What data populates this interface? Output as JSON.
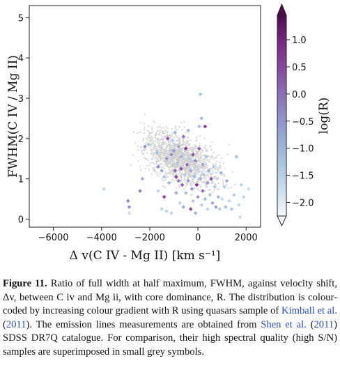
{
  "chart_data": {
    "type": "scatter",
    "xlabel": "Δ v(C IV - Mg II) [km s⁻¹]",
    "ylabel": "FWHM(C IV / Mg II)",
    "colorbar_label": "log(R)",
    "xlim": [
      -7000,
      2600
    ],
    "ylim": [
      -0.2,
      5.3
    ],
    "xticks": [
      "−6000",
      "−4000",
      "−2000",
      "0",
      "2000"
    ],
    "yticks": [
      "0",
      "1",
      "2",
      "3",
      "4",
      "5"
    ],
    "clim": [
      -2.25,
      1.45
    ],
    "cticks": [
      "1.0",
      "0.5",
      "0.0",
      "−0.5",
      "−1.0",
      "−1.5",
      "−2.0"
    ],
    "colormap": [
      "#f6f9fb",
      "#c2d6e8",
      "#9bb8da",
      "#8f8fc8",
      "#8a5dad",
      "#7f2f8b",
      "#4c0a4f"
    ],
    "grey_color": "#c6c6c6",
    "series": [
      {
        "note": "colored diamonds",
        "points": [
          [
            -3900,
            0.75,
            -1.6
          ],
          [
            -2900,
            0.45,
            -0.1
          ],
          [
            -2850,
            0.3,
            -0.3
          ],
          [
            -2850,
            0.15,
            -1.7
          ],
          [
            -2400,
            0.7,
            -0.1
          ],
          [
            -2300,
            1.0,
            -0.8
          ],
          [
            -2200,
            1.8,
            -0.2
          ],
          [
            -2050,
            1.85,
            -1.2
          ],
          [
            -1700,
            1.65,
            -1.0
          ],
          [
            -1650,
            1.3,
            -0.1
          ],
          [
            -1500,
            1.2,
            -0.6
          ],
          [
            -1400,
            1.05,
            -1.1
          ],
          [
            -1400,
            0.55,
            0.9
          ],
          [
            -1300,
            1.5,
            -0.4
          ],
          [
            -1300,
            0.2,
            -1.4
          ],
          [
            -1250,
            2.0,
            0.5
          ],
          [
            -1200,
            0.9,
            -0.9
          ],
          [
            -1100,
            1.6,
            -0.2
          ],
          [
            -1100,
            0.15,
            -1.6
          ],
          [
            -1050,
            1.95,
            -1.3
          ],
          [
            -1000,
            1.7,
            -0.4
          ],
          [
            -950,
            2.15,
            -0.8
          ],
          [
            -950,
            1.2,
            0.3
          ],
          [
            -900,
            0.65,
            -0.7
          ],
          [
            -900,
            1.05,
            0.8
          ],
          [
            -850,
            1.4,
            -1.2
          ],
          [
            -800,
            1.8,
            -0.6
          ],
          [
            -800,
            0.95,
            -0.1
          ],
          [
            -750,
            0.4,
            -1.5
          ],
          [
            -700,
            1.25,
            0.6
          ],
          [
            -700,
            1.55,
            -0.9
          ],
          [
            -650,
            0.85,
            0.4
          ],
          [
            -600,
            2.05,
            0.1
          ],
          [
            -600,
            0.3,
            -0.8
          ],
          [
            -550,
            1.1,
            -1.4
          ],
          [
            -500,
            1.75,
            1.0
          ],
          [
            -500,
            0.65,
            -1.1
          ],
          [
            -450,
            1.35,
            0.2
          ],
          [
            -400,
            0.95,
            -0.5
          ],
          [
            -400,
            2.2,
            -1.0
          ],
          [
            -350,
            1.5,
            -1.3
          ],
          [
            -300,
            0.25,
            0.7
          ],
          [
            -300,
            1.2,
            -0.7
          ],
          [
            -250,
            0.75,
            -0.3
          ],
          [
            -200,
            1.6,
            0.5
          ],
          [
            -200,
            0.45,
            -1.2
          ],
          [
            -150,
            1.05,
            -1.0
          ],
          [
            -100,
            1.45,
            -0.2
          ],
          [
            -100,
            0.15,
            -0.9
          ],
          [
            -50,
            0.85,
            1.1
          ],
          [
            0,
            1.25,
            -1.6
          ],
          [
            0,
            0.55,
            -0.4
          ],
          [
            50,
            2.3,
            -1.1
          ],
          [
            50,
            1.75,
            0.3
          ],
          [
            100,
            3.1,
            -1.1
          ],
          [
            100,
            1.0,
            -0.9
          ],
          [
            150,
            2.5,
            -0.9
          ],
          [
            150,
            0.35,
            -1.4
          ],
          [
            200,
            1.35,
            -0.6
          ],
          [
            200,
            0.7,
            0.2
          ],
          [
            250,
            1.1,
            -1.3
          ],
          [
            300,
            2.3,
            0.9
          ],
          [
            300,
            0.5,
            -1.0
          ],
          [
            350,
            1.55,
            -1.2
          ],
          [
            400,
            0.9,
            -0.3
          ],
          [
            400,
            0.25,
            -1.5
          ],
          [
            450,
            1.2,
            -0.8
          ],
          [
            500,
            0.6,
            -1.1
          ],
          [
            550,
            1.0,
            0.6
          ],
          [
            600,
            0.4,
            -0.7
          ],
          [
            650,
            1.3,
            -1.4
          ],
          [
            700,
            0.8,
            -1.2
          ],
          [
            750,
            0.3,
            -0.5
          ],
          [
            800,
            1.0,
            -1.6
          ],
          [
            850,
            0.55,
            -0.9
          ],
          [
            900,
            0.25,
            -1.3
          ],
          [
            950,
            1.15,
            -1.0
          ],
          [
            1000,
            0.5,
            -1.6
          ],
          [
            1100,
            0.8,
            -1.4
          ],
          [
            1150,
            0.3,
            -1.1
          ],
          [
            1200,
            0.95,
            -0.7
          ],
          [
            1300,
            0.45,
            -1.5
          ],
          [
            1400,
            0.25,
            -1.2
          ],
          [
            1500,
            0.6,
            -1.3
          ],
          [
            1600,
            1.55,
            -1.1
          ],
          [
            1700,
            0.35,
            -1.6
          ],
          [
            1800,
            0.85,
            -1.4
          ],
          [
            2100,
            0.75,
            -1.7
          ],
          [
            1900,
            0.55,
            -1.5
          ],
          [
            1750,
            0.05,
            -1.6
          ],
          [
            -1650,
            0.7,
            -1.5
          ],
          [
            -1500,
            0.25,
            -1.4
          ]
        ]
      }
    ]
  },
  "caption": {
    "label": "Figure 11.",
    "text_1": " Ratio of full width at half maximum, FWHM, against velocity shift, Δv, between C iv and Mg ii, with core dominance, R. The distribution is colour-coded by increasing colour gradient with R using quasars sample of ",
    "ref_1": "Kimball et al.",
    "ref_1_year": "2011",
    "text_2": ". The emission lines measurements are obtained from ",
    "ref_2": "Shen et al.",
    "ref_2_year": "2011",
    "text_3": " SDSS DR7Q catalogue. For comparison, their high spectral quality (high S/N) samples are superimposed in small grey symbols."
  }
}
